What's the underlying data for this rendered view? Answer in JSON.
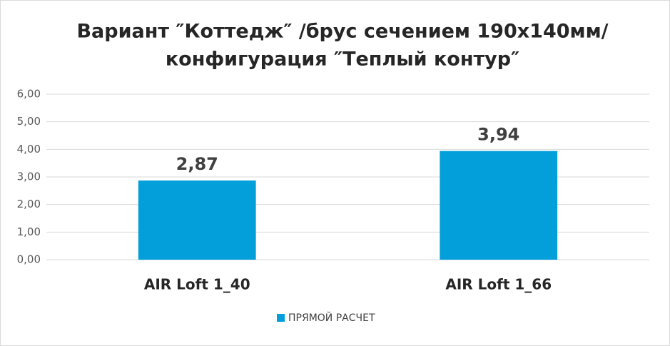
{
  "chart_data": {
    "type": "bar",
    "title": [
      "Вариант ″Коттедж″ /брус сечением 190х140мм/",
      "конфигурация ″Теплый контур″"
    ],
    "categories": [
      "AIR Loft 1_40",
      "AIR Loft 1_66"
    ],
    "series": [
      {
        "name": "ПРЯМОЙ РАСЧЕТ",
        "color": "#039fdb",
        "values": [
          2.87,
          3.94
        ],
        "value_labels": [
          "2,87",
          "3,94"
        ]
      }
    ],
    "ylim": [
      0,
      6
    ],
    "yticks": [
      {
        "value": 0,
        "label": "0,00"
      },
      {
        "value": 1,
        "label": "1,00"
      },
      {
        "value": 2,
        "label": "2,00"
      },
      {
        "value": 3,
        "label": "3,00"
      },
      {
        "value": 4,
        "label": "4,00"
      },
      {
        "value": 5,
        "label": "5,00"
      },
      {
        "value": 6,
        "label": "6,00"
      }
    ],
    "grid": true,
    "legend": "bottom"
  }
}
